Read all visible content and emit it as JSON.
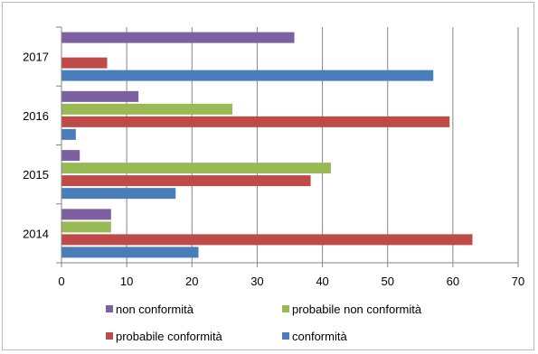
{
  "chart_data": {
    "type": "bar",
    "orientation": "horizontal",
    "categories": [
      "2014",
      "2015",
      "2016",
      "2017"
    ],
    "series": [
      {
        "name": "conformità",
        "color": "#4a7ebb",
        "values": [
          21,
          17.5,
          2.2,
          57
        ]
      },
      {
        "name": "probabile conformità",
        "color": "#be4b48",
        "values": [
          63,
          38.2,
          59.5,
          7
        ]
      },
      {
        "name": "probabile non conformità",
        "color": "#98b954",
        "values": [
          7.6,
          41.3,
          26.2,
          null
        ]
      },
      {
        "name": "non conformità",
        "color": "#7d60a0",
        "values": [
          7.6,
          2.8,
          11.8,
          35.7
        ]
      }
    ],
    "xlim": [
      0,
      70
    ],
    "x_ticks": [
      "0",
      "10",
      "20",
      "30",
      "40",
      "50",
      "60",
      "70"
    ],
    "grid": true,
    "legend_position": "bottom",
    "legend": [
      {
        "label": "non conformità",
        "color": "#7d60a0"
      },
      {
        "label": "probabile non conformità",
        "color": "#98b954"
      },
      {
        "label": "probabile conformità",
        "color": "#be4b48"
      },
      {
        "label": "conformità",
        "color": "#4a7ebb"
      }
    ],
    "title": "",
    "xlabel": "",
    "ylabel": ""
  }
}
